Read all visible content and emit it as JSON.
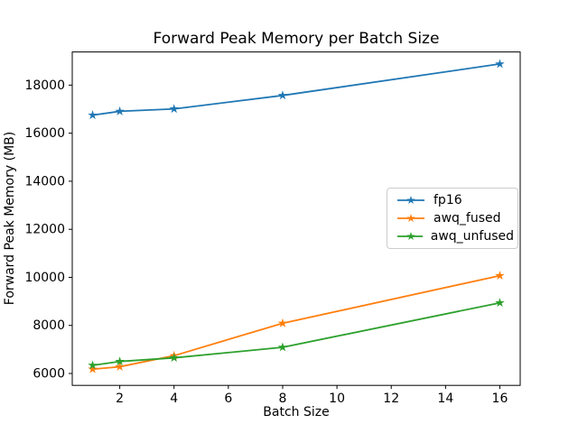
{
  "figure": {
    "background": "#ffffff"
  },
  "chart_data": {
    "type": "line",
    "title": "Forward Peak Memory per Batch Size",
    "xlabel": "Batch Size",
    "ylabel": "Forward Peak Memory (MB)",
    "x": [
      1,
      2,
      4,
      8,
      16
    ],
    "series": [
      {
        "name": "fp16",
        "color": "#1f77b4",
        "marker": "star",
        "values": [
          16750,
          16910,
          17010,
          17570,
          18880
        ]
      },
      {
        "name": "awq_fused",
        "color": "#ff7f0e",
        "marker": "star",
        "values": [
          6180,
          6280,
          6740,
          8090,
          10070
        ]
      },
      {
        "name": "awq_unfused",
        "color": "#2ca02c",
        "marker": "star",
        "values": [
          6340,
          6500,
          6650,
          7090,
          8940
        ]
      }
    ],
    "xticks": [
      2,
      4,
      6,
      8,
      10,
      12,
      14,
      16
    ],
    "yticks": [
      6000,
      8000,
      10000,
      12000,
      14000,
      16000,
      18000
    ],
    "xlim": [
      0.25,
      16.75
    ],
    "ylim": [
      5505,
      19380
    ],
    "grid": false,
    "legend": {
      "position": "center right"
    },
    "axis_color": "#000000"
  }
}
